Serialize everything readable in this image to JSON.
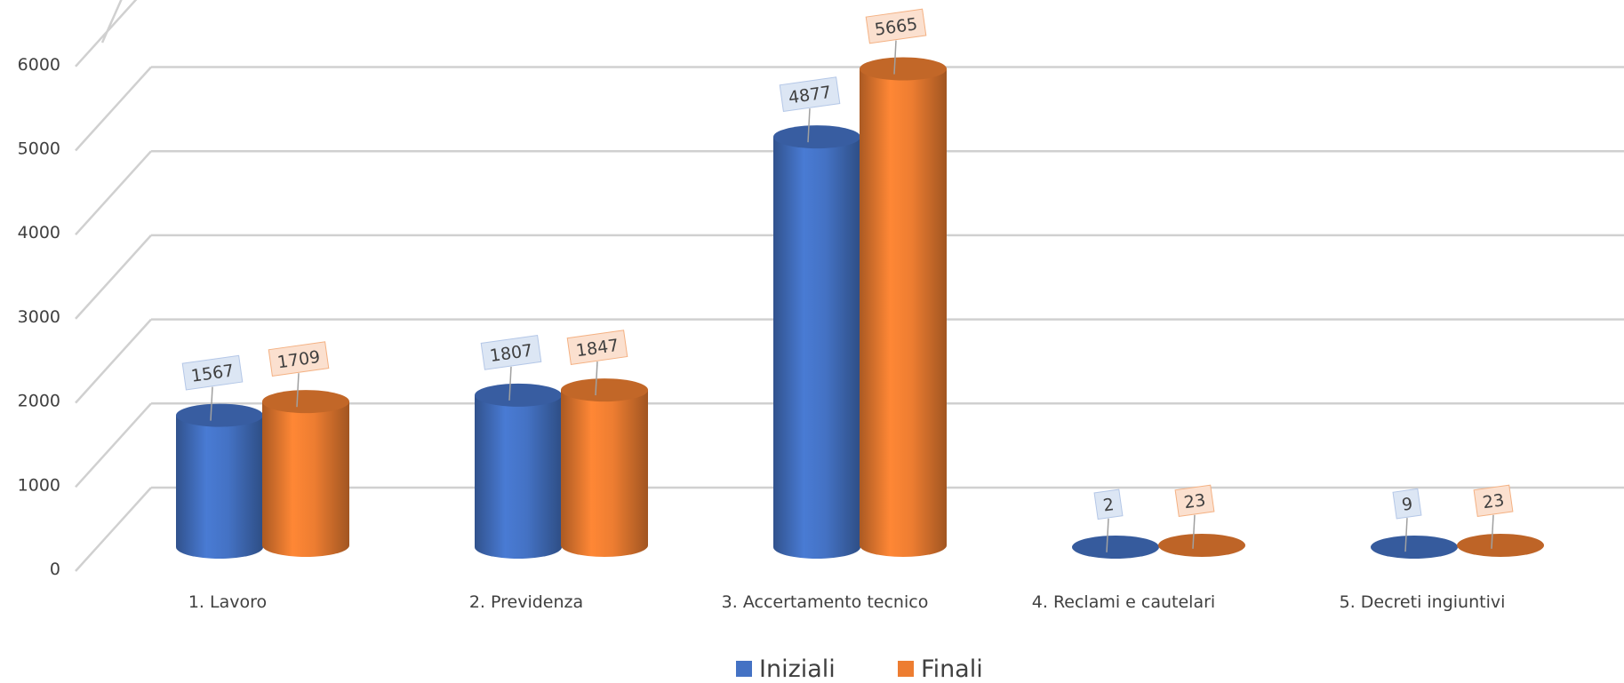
{
  "chart_data": {
    "type": "bar",
    "style": "3d-cylinder",
    "categories": [
      "1. Lavoro",
      "2. Previdenza",
      "3. Accertamento tecnico",
      "4. Reclami e cautelari",
      "5. Decreti ingiuntivi"
    ],
    "series": [
      {
        "name": "Iniziali",
        "values": [
          1567,
          1807,
          4877,
          2,
          9
        ],
        "color": "#4472C4"
      },
      {
        "name": "Finali",
        "values": [
          1709,
          1847,
          5665,
          23,
          23
        ],
        "color": "#ED7D31"
      }
    ],
    "y_ticks": [
      "0",
      "1000",
      "2000",
      "3000",
      "4000",
      "5000",
      "6000"
    ],
    "ylim": [
      0,
      6000
    ],
    "grid": true,
    "legend_position": "bottom"
  }
}
